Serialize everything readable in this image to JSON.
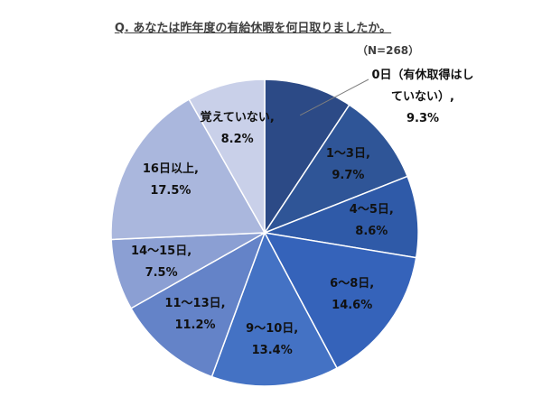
{
  "chart_data": {
    "type": "pie",
    "title": "Q. あなたは昨年度の有給休暇を何日取りましたか。",
    "subtitle": "（N=268）",
    "categories": [
      "0日（有休取得はしていない）",
      "1～3日",
      "4～5日",
      "6～8日",
      "9～10日",
      "11～13日",
      "14～15日",
      "16日以上",
      "覚えていない"
    ],
    "values": [
      9.3,
      9.7,
      8.6,
      14.6,
      13.4,
      11.2,
      7.5,
      17.5,
      8.2
    ],
    "value_labels": [
      "9.3%",
      "9.7%",
      "8.6%",
      "14.6%",
      "13.4%",
      "11.2%",
      "7.5%",
      "17.5%",
      "8.2%"
    ],
    "label_separator": ",",
    "colors": [
      "#2c4a86",
      "#2f5597",
      "#2f5aa8",
      "#3563ba",
      "#4472c4",
      "#6483c8",
      "#8b9fd3",
      "#aab7dd",
      "#c9d0e9"
    ]
  }
}
